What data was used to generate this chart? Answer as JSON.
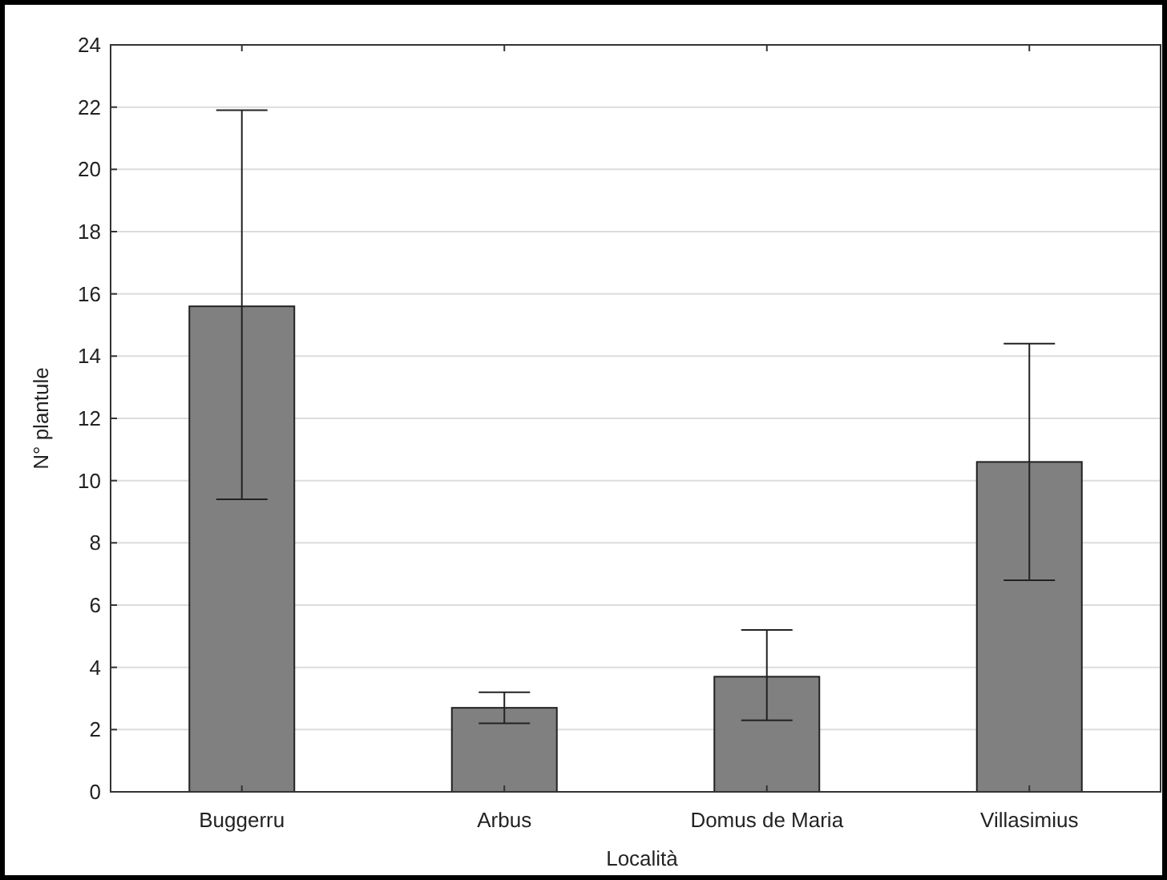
{
  "chart_data": {
    "type": "bar",
    "xlabel": "Località",
    "ylabel": "N° plantule",
    "categories": [
      "Buggerru",
      "Arbus",
      "Domus de Maria",
      "Villasimius"
    ],
    "values": [
      15.6,
      2.7,
      3.7,
      10.6
    ],
    "errors": [
      [
        9.4,
        21.9
      ],
      [
        2.2,
        3.2
      ],
      [
        2.3,
        5.2
      ],
      [
        6.8,
        14.4
      ]
    ],
    "color": "#808080",
    "ylim": [
      0,
      24
    ],
    "yticks": [
      0,
      2,
      4,
      6,
      8,
      10,
      12,
      14,
      16,
      18,
      20,
      22,
      24
    ],
    "grid": "y"
  }
}
